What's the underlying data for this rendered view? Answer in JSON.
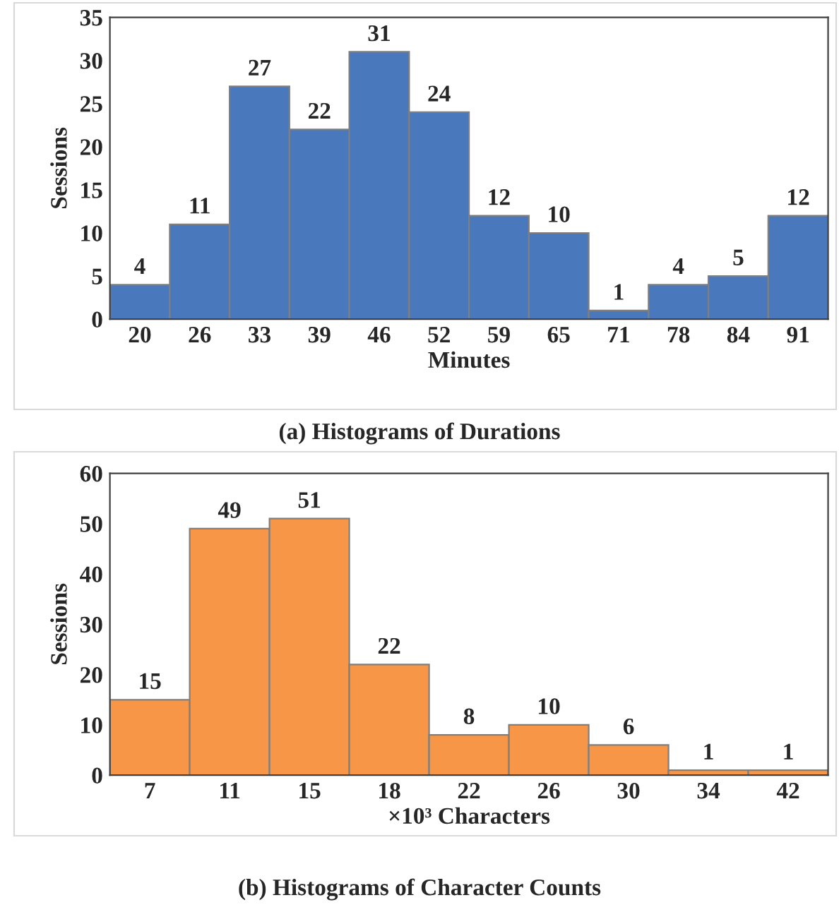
{
  "chart_data": [
    {
      "type": "bar",
      "ylabel": "Sessions",
      "xlabel": "Minutes",
      "categories": [
        "20",
        "26",
        "33",
        "39",
        "46",
        "52",
        "59",
        "65",
        "71",
        "78",
        "84",
        "91"
      ],
      "values": [
        4,
        11,
        27,
        22,
        31,
        24,
        12,
        10,
        1,
        4,
        5,
        12
      ],
      "color": "#4a78bd",
      "ylim": [
        0,
        35
      ],
      "yticks": [
        0,
        5,
        10,
        15,
        20,
        25,
        30,
        35
      ],
      "data_labels": true,
      "grid": false,
      "annotations": [
        "(a) Histograms of Durations"
      ]
    },
    {
      "type": "bar",
      "ylabel": "Sessions",
      "xlabel": "×10³ Characters",
      "categories": [
        "7",
        "11",
        "15",
        "18",
        "22",
        "26",
        "30",
        "34",
        "42"
      ],
      "values": [
        15,
        49,
        51,
        22,
        8,
        10,
        6,
        1,
        1
      ],
      "color": "#f79646",
      "ylim": [
        0,
        60
      ],
      "yticks": [
        0,
        10,
        20,
        30,
        40,
        50,
        60
      ],
      "data_labels": true,
      "grid": false,
      "annotations": [
        "(b) Histograms of Character Counts"
      ]
    }
  ]
}
